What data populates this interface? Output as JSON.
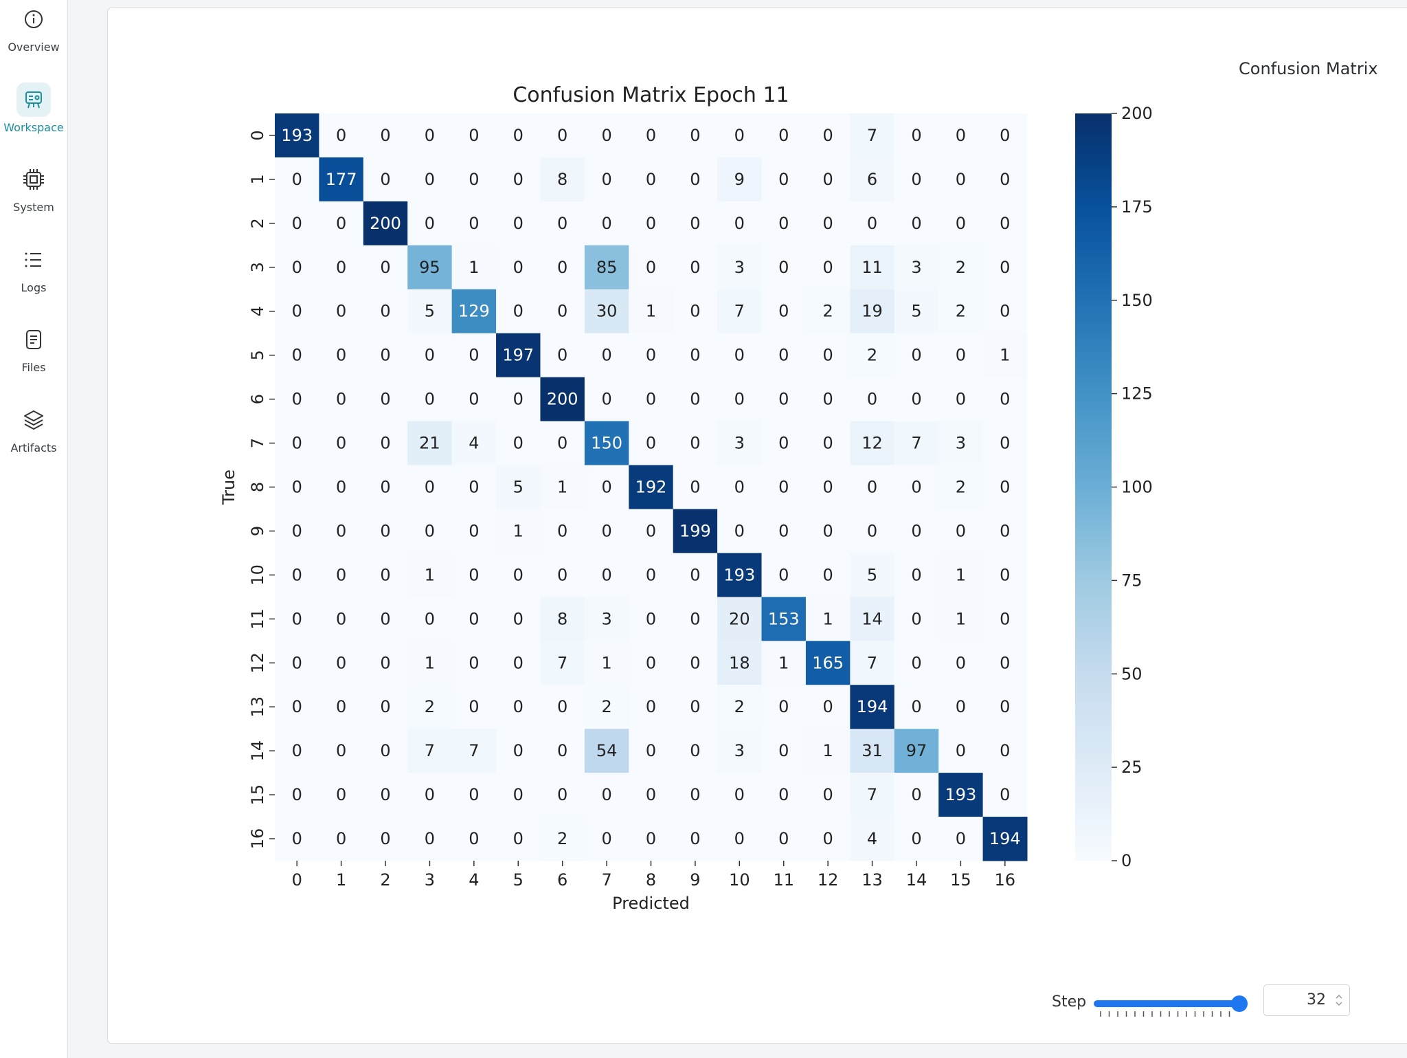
{
  "sidebar": {
    "items": [
      {
        "label": "Overview",
        "icon": "info-icon",
        "active": false
      },
      {
        "label": "Workspace",
        "icon": "workspace-icon",
        "active": true
      },
      {
        "label": "System",
        "icon": "cpu-icon",
        "active": false
      },
      {
        "label": "Logs",
        "icon": "list-icon",
        "active": false
      },
      {
        "label": "Files",
        "icon": "file-icon",
        "active": false
      },
      {
        "label": "Artifacts",
        "icon": "layers-icon",
        "active": false
      }
    ],
    "accent": "#1a8fa0"
  },
  "panel": {
    "title": "Confusion Matrix"
  },
  "step": {
    "label": "Step",
    "value": "32",
    "slider_fraction": 1.0
  },
  "chart_data": {
    "type": "heatmap",
    "title": "Confusion Matrix Epoch 11",
    "xlabel": "Predicted",
    "ylabel": "True",
    "x_labels": [
      "0",
      "1",
      "2",
      "3",
      "4",
      "5",
      "6",
      "7",
      "8",
      "9",
      "10",
      "11",
      "12",
      "13",
      "14",
      "15",
      "16"
    ],
    "y_labels": [
      "0",
      "1",
      "2",
      "3",
      "4",
      "5",
      "6",
      "7",
      "8",
      "9",
      "10",
      "11",
      "12",
      "13",
      "14",
      "15",
      "16"
    ],
    "values": [
      [
        193,
        0,
        0,
        0,
        0,
        0,
        0,
        0,
        0,
        0,
        0,
        0,
        0,
        7,
        0,
        0,
        0
      ],
      [
        0,
        177,
        0,
        0,
        0,
        0,
        8,
        0,
        0,
        0,
        9,
        0,
        0,
        6,
        0,
        0,
        0
      ],
      [
        0,
        0,
        200,
        0,
        0,
        0,
        0,
        0,
        0,
        0,
        0,
        0,
        0,
        0,
        0,
        0,
        0
      ],
      [
        0,
        0,
        0,
        95,
        1,
        0,
        0,
        85,
        0,
        0,
        3,
        0,
        0,
        11,
        3,
        2,
        0
      ],
      [
        0,
        0,
        0,
        5,
        129,
        0,
        0,
        30,
        1,
        0,
        7,
        0,
        2,
        19,
        5,
        2,
        0
      ],
      [
        0,
        0,
        0,
        0,
        0,
        197,
        0,
        0,
        0,
        0,
        0,
        0,
        0,
        2,
        0,
        0,
        1
      ],
      [
        0,
        0,
        0,
        0,
        0,
        0,
        200,
        0,
        0,
        0,
        0,
        0,
        0,
        0,
        0,
        0,
        0
      ],
      [
        0,
        0,
        0,
        21,
        4,
        0,
        0,
        150,
        0,
        0,
        3,
        0,
        0,
        12,
        7,
        3,
        0
      ],
      [
        0,
        0,
        0,
        0,
        0,
        5,
        1,
        0,
        192,
        0,
        0,
        0,
        0,
        0,
        0,
        2,
        0
      ],
      [
        0,
        0,
        0,
        0,
        0,
        1,
        0,
        0,
        0,
        199,
        0,
        0,
        0,
        0,
        0,
        0,
        0
      ],
      [
        0,
        0,
        0,
        1,
        0,
        0,
        0,
        0,
        0,
        0,
        193,
        0,
        0,
        5,
        0,
        1,
        0
      ],
      [
        0,
        0,
        0,
        0,
        0,
        0,
        8,
        3,
        0,
        0,
        20,
        153,
        1,
        14,
        0,
        1,
        0
      ],
      [
        0,
        0,
        0,
        1,
        0,
        0,
        7,
        1,
        0,
        0,
        18,
        1,
        165,
        7,
        0,
        0,
        0
      ],
      [
        0,
        0,
        0,
        2,
        0,
        0,
        0,
        2,
        0,
        0,
        2,
        0,
        0,
        194,
        0,
        0,
        0
      ],
      [
        0,
        0,
        0,
        7,
        7,
        0,
        0,
        54,
        0,
        0,
        3,
        0,
        1,
        31,
        97,
        0,
        0
      ],
      [
        0,
        0,
        0,
        0,
        0,
        0,
        0,
        0,
        0,
        0,
        0,
        0,
        0,
        7,
        0,
        193,
        0
      ],
      [
        0,
        0,
        0,
        0,
        0,
        0,
        2,
        0,
        0,
        0,
        0,
        0,
        0,
        4,
        0,
        0,
        194
      ]
    ],
    "vmin": 0,
    "vmax": 200,
    "colorbar_ticks": [
      0,
      25,
      50,
      75,
      100,
      125,
      150,
      175,
      200
    ],
    "colormap": "Blues",
    "colors": {
      "low": "#f7fbff",
      "high": "#08306b"
    }
  }
}
